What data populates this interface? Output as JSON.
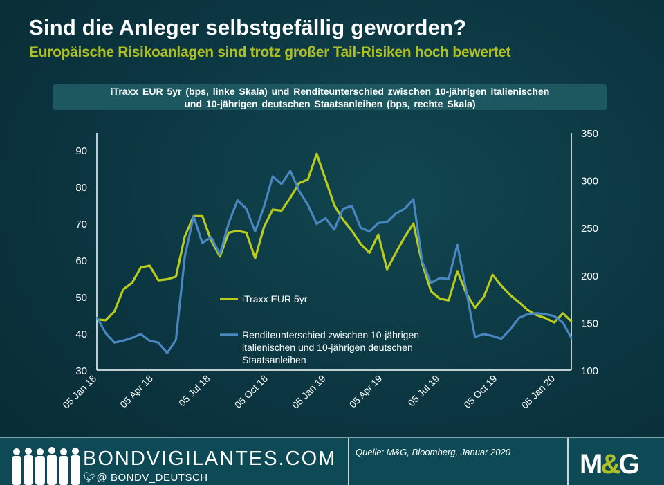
{
  "header": {
    "title": "Sind die Anleger selbstgefällig geworden?",
    "subtitle": "Europäische Risikoanlagen sind trotz großer Tail-Risiken hoch bewertet",
    "chart_title_line1": "iTraxx EUR 5yr (bps, linke Skala) und Renditeunterschied zwischen 10-jährigen italienischen",
    "chart_title_line2": "und 10-jährigen deutschen Staatsanleihen (bps, rechte Skala)"
  },
  "chart_data": {
    "type": "line",
    "title": "iTraxx EUR 5yr (bps, linke Skala) und Renditeunterschied zwischen 10-jährigen italienischen und 10-jährigen deutschen Staatsanleihen (bps, rechte Skala)",
    "x": [
      "2018-01-05",
      "2018-01-19",
      "2018-02-02",
      "2018-02-16",
      "2018-03-02",
      "2018-03-16",
      "2018-03-30",
      "2018-04-13",
      "2018-04-27",
      "2018-05-11",
      "2018-05-25",
      "2018-06-08",
      "2018-06-22",
      "2018-07-06",
      "2018-07-20",
      "2018-08-03",
      "2018-08-17",
      "2018-08-31",
      "2018-09-14",
      "2018-09-28",
      "2018-10-12",
      "2018-10-26",
      "2018-11-09",
      "2018-11-23",
      "2018-12-07",
      "2018-12-21",
      "2019-01-04",
      "2019-01-18",
      "2019-02-01",
      "2019-02-15",
      "2019-03-01",
      "2019-03-15",
      "2019-03-29",
      "2019-04-12",
      "2019-04-26",
      "2019-05-10",
      "2019-05-24",
      "2019-06-07",
      "2019-06-21",
      "2019-07-05",
      "2019-07-19",
      "2019-08-02",
      "2019-08-16",
      "2019-08-30",
      "2019-09-13",
      "2019-09-27",
      "2019-10-11",
      "2019-10-25",
      "2019-11-08",
      "2019-11-22",
      "2019-12-06",
      "2019-12-20",
      "2020-01-03",
      "2020-01-17",
      "2020-01-31"
    ],
    "x_ticks": [
      "05 Jan 18",
      "05 Apr 18",
      "05 Jul 18",
      "05 Oct 18",
      "05 Jan 19",
      "05 Apr 19",
      "05 Jul 19",
      "05 Oct 19",
      "05 Jan 20"
    ],
    "x_tick_dates": [
      "2018-01-05",
      "2018-04-05",
      "2018-07-05",
      "2018-10-05",
      "2019-01-05",
      "2019-04-05",
      "2019-07-05",
      "2019-10-05",
      "2020-01-05"
    ],
    "y_left": {
      "range": [
        30,
        90
      ],
      "ticks": [
        "30",
        "40",
        "50",
        "60",
        "70",
        "80",
        "90"
      ]
    },
    "y_right": {
      "range": [
        100,
        350
      ],
      "ticks": [
        "100",
        "150",
        "200",
        "250",
        "300",
        "350"
      ]
    },
    "grid": false,
    "legend_placement": "center-left",
    "series": [
      {
        "name": "iTraxx EUR 5yr",
        "axis": "left",
        "color": "#b9cc1e",
        "values": [
          43.8,
          43.6,
          46,
          52,
          53.8,
          58,
          58.5,
          54.5,
          54.8,
          55.5,
          66.5,
          72,
          72,
          65.3,
          61,
          67.5,
          68,
          67.5,
          60.5,
          69,
          73.8,
          73.5,
          77,
          81,
          82,
          89,
          82,
          75,
          71,
          68,
          64.4,
          62,
          67,
          57.5,
          62,
          66.3,
          70,
          59,
          51.5,
          49.5,
          49,
          57,
          51,
          47,
          50,
          56,
          53,
          50.5,
          48.5,
          46.4,
          45,
          44.2,
          43,
          45.5,
          43.2
        ]
      },
      {
        "name": "Renditeunterschied zwischen 10-jährigen italienischen und 10-jährigen deutschen Staatsanleihen",
        "axis": "right",
        "color": "#4a86c0",
        "legend_lines": [
          "Renditeunterschied zwischen 10-jährigen",
          "italienischen und 10-jährigen deutschen",
          "Staatsanleihen"
        ],
        "values": [
          156,
          139,
          129,
          131,
          134,
          138,
          131,
          129,
          118,
          132,
          220,
          262,
          234,
          240,
          222,
          255,
          279,
          270,
          246,
          272,
          304,
          296,
          310,
          289,
          274,
          254,
          260,
          248,
          270,
          273,
          250,
          246,
          255,
          256,
          265,
          270,
          280,
          214,
          192,
          197,
          196,
          232,
          184,
          135,
          138,
          136,
          133,
          143,
          155,
          159,
          160,
          159,
          157,
          150,
          133
        ]
      }
    ]
  },
  "footer": {
    "brand": "BONDVIGILANTES.COM",
    "twitter": "@ BONDV_DEUTSCH",
    "source": "Quelle: M&G, Bloomberg, Januar 2020",
    "logo_text": "M&G"
  }
}
